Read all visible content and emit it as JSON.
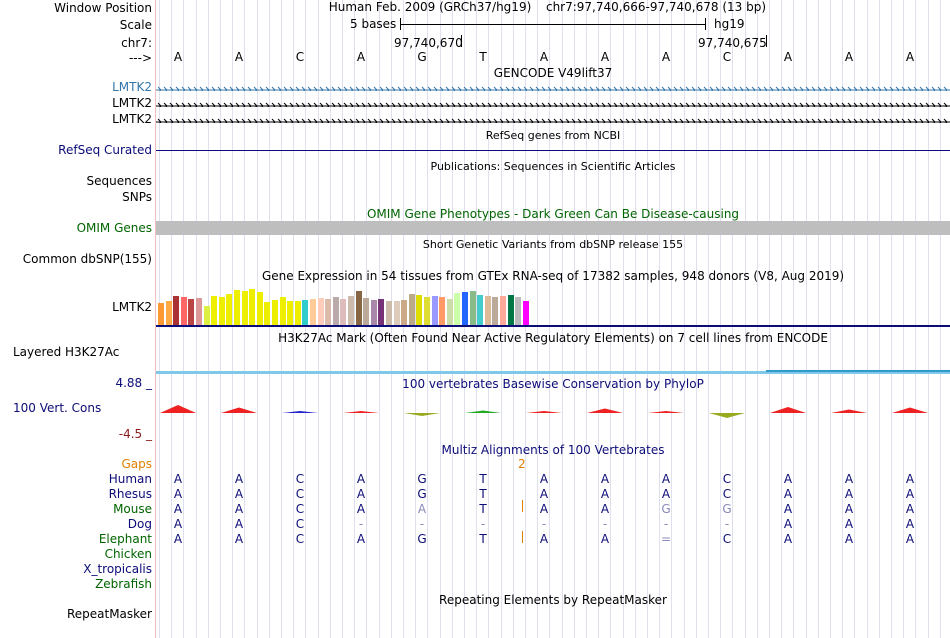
{
  "header": {
    "window_position_label": "Window Position",
    "scale_label": "Scale",
    "chrom_label": "chr7:",
    "arrow_label": "--->",
    "assembly": "Human Feb. 2009 (GRCh37/hg19)",
    "coords": "chr7:97,740,666-97,740,678 (13 bp)",
    "scale_text": "5 bases",
    "db": "hg19",
    "tick1": "97,740,670",
    "tick2": "97,740,675"
  },
  "bases": [
    "A",
    "A",
    "C",
    "A",
    "G",
    "T",
    "A",
    "A",
    "A",
    "C",
    "A",
    "A",
    "A"
  ],
  "gencode": {
    "title": "GENCODE V49lift37",
    "rows": [
      {
        "label": "LMTK2",
        "color": "#3377aa"
      },
      {
        "label": "LMTK2",
        "color": "#000000"
      },
      {
        "label": "LMTK2",
        "color": "#000000"
      }
    ]
  },
  "refseq": {
    "title": "RefSeq genes from NCBI",
    "label": "RefSeq Curated",
    "color": "#0c0c78"
  },
  "publications": {
    "title": "Publications: Sequences in Scientific Articles",
    "label1": "Sequences",
    "label2": "SNPs"
  },
  "omim": {
    "title": "OMIM Gene Phenotypes - Dark Green Can Be Disease-causing",
    "label": "OMIM Genes",
    "color": "#006400"
  },
  "dbsnp": {
    "title": "Short Genetic Variants from dbSNP release 155",
    "label": "Common dbSNP(155)"
  },
  "gtex": {
    "title": "Gene Expression in 54 tissues from GTEx RNA-seq of 17382 samples, 948 donors (V8, Aug 2019)",
    "label": "LMTK2",
    "bars": [
      {
        "v": 0.46,
        "c": "#ff9933"
      },
      {
        "v": 0.5,
        "c": "#ffaa44"
      },
      {
        "v": 0.62,
        "c": "#aa3333"
      },
      {
        "v": 0.6,
        "c": "#ff6666"
      },
      {
        "v": 0.55,
        "c": "#bb4444"
      },
      {
        "v": 0.58,
        "c": "#dd9999"
      },
      {
        "v": 0.4,
        "c": "#ddee44"
      },
      {
        "v": 0.62,
        "c": "#eeee00"
      },
      {
        "v": 0.6,
        "c": "#eeee00"
      },
      {
        "v": 0.65,
        "c": "#eeee00"
      },
      {
        "v": 0.74,
        "c": "#eeee00"
      },
      {
        "v": 0.72,
        "c": "#eeee00"
      },
      {
        "v": 0.76,
        "c": "#eeee00"
      },
      {
        "v": 0.7,
        "c": "#eeee00"
      },
      {
        "v": 0.48,
        "c": "#eeee00"
      },
      {
        "v": 0.54,
        "c": "#eeee00"
      },
      {
        "v": 0.6,
        "c": "#eeee00"
      },
      {
        "v": 0.5,
        "c": "#eeee00"
      },
      {
        "v": 0.52,
        "c": "#eeee00"
      },
      {
        "v": 0.54,
        "c": "#33cccc"
      },
      {
        "v": 0.56,
        "c": "#ffcc99"
      },
      {
        "v": 0.58,
        "c": "#ffccbb"
      },
      {
        "v": 0.55,
        "c": "#ddbbaa"
      },
      {
        "v": 0.6,
        "c": "#bbaaaa"
      },
      {
        "v": 0.56,
        "c": "#ddbbbb"
      },
      {
        "v": 0.62,
        "c": "#ccbbaa"
      },
      {
        "v": 0.72,
        "c": "#886644"
      },
      {
        "v": 0.58,
        "c": "#bbaa99"
      },
      {
        "v": 0.54,
        "c": "#aa88aa"
      },
      {
        "v": 0.56,
        "c": "#773377"
      },
      {
        "v": 0.5,
        "c": "#ccbbaa"
      },
      {
        "v": 0.52,
        "c": "#ddccbb"
      },
      {
        "v": 0.54,
        "c": "#ccaa88"
      },
      {
        "v": 0.66,
        "c": "#bbaa88"
      },
      {
        "v": 0.64,
        "c": "#dddd00"
      },
      {
        "v": 0.6,
        "c": "#dddd33"
      },
      {
        "v": 0.62,
        "c": "#9999ff"
      },
      {
        "v": 0.6,
        "c": "#ff9966"
      },
      {
        "v": 0.56,
        "c": "#ccddaa"
      },
      {
        "v": 0.68,
        "c": "#ccffaa"
      },
      {
        "v": 0.7,
        "c": "#2266ff"
      },
      {
        "v": 0.72,
        "c": "#88bb88"
      },
      {
        "v": 0.64,
        "c": "#44cccc"
      },
      {
        "v": 0.62,
        "c": "#ddbb99"
      },
      {
        "v": 0.6,
        "c": "#bbaa99"
      },
      {
        "v": 0.62,
        "c": "#ffaa99"
      },
      {
        "v": 0.64,
        "c": "#007744"
      },
      {
        "v": 0.6,
        "c": "#bbbbbb"
      },
      {
        "v": 0.52,
        "c": "#ff00ff"
      }
    ]
  },
  "h3k27ac": {
    "title": "H3K27Ac Mark (Often Found Near Active Regulatory Elements) on 7 cell lines from ENCODE",
    "label": "Layered H3K27Ac"
  },
  "phylop": {
    "title": "100 vertebrates Basewise Conservation by PhyloP",
    "label": "100 Vert. Cons",
    "max_label": "4.88 _",
    "min_label": "-4.5 _",
    "values": [
      1.6,
      1.1,
      0.15,
      0.1,
      -0.6,
      0.5,
      0.1,
      0.9,
      0.3,
      -1.0,
      1.2,
      0.7,
      1.1
    ]
  },
  "multiz": {
    "title": "Multiz Alignments of 100 Vertebrates",
    "gaps_label": "Gaps",
    "gap_count": "2",
    "species": [
      {
        "name": "Human",
        "color": "#0c0c78",
        "bases": [
          "A",
          "A",
          "C",
          "A",
          "G",
          "T",
          "A",
          "A",
          "A",
          "C",
          "A",
          "A",
          "A"
        ]
      },
      {
        "name": "Rhesus",
        "color": "#0c0c78",
        "bases": [
          "A",
          "A",
          "C",
          "A",
          "G",
          "T",
          "A",
          "A",
          "A",
          "C",
          "A",
          "A",
          "A"
        ]
      },
      {
        "name": "Mouse",
        "color": "#006400",
        "bases": [
          "A",
          "A",
          "C",
          "A",
          "A",
          "T",
          "A",
          "A",
          "G",
          "G",
          "A",
          "A",
          "A"
        ]
      },
      {
        "name": "Dog",
        "color": "#0c0c78",
        "bases": [
          "A",
          "A",
          "C",
          "-",
          "-",
          "-",
          "-",
          "-",
          "-",
          "-",
          "A",
          "A",
          "A"
        ]
      },
      {
        "name": "Elephant",
        "color": "#006400",
        "bases": [
          "A",
          "A",
          "C",
          "A",
          "G",
          "T",
          "A",
          "A",
          "=",
          "C",
          "A",
          "A",
          "A"
        ]
      },
      {
        "name": "Chicken",
        "color": "#006400",
        "bases": []
      },
      {
        "name": "X_tropicalis",
        "color": "#0c0c78",
        "bases": []
      },
      {
        "name": "Zebrafish",
        "color": "#006400",
        "bases": []
      }
    ]
  },
  "repeatmasker": {
    "title": "Repeating Elements by RepeatMasker",
    "label": "RepeatMasker"
  }
}
